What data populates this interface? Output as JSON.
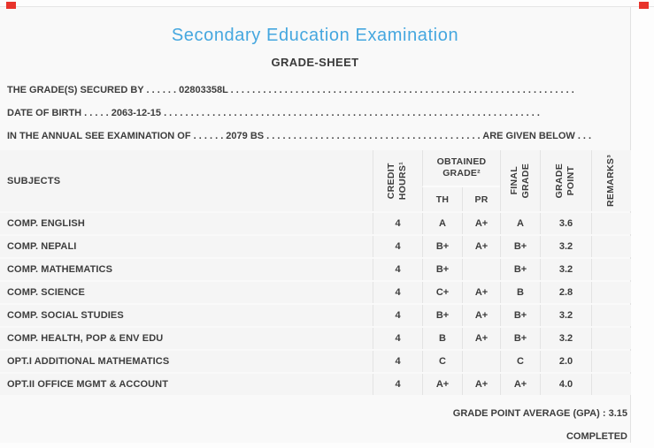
{
  "corner_marks": {
    "color": "#e8342c"
  },
  "header": {
    "title": "Secondary Education Examination",
    "title_color": "#45a7df",
    "subtitle": "GRADE-SHEET"
  },
  "info_lines": [
    {
      "text": "THE GRADE(S) SECURED BY . . . . . . 02803358L . . . . . . . . . . . . . . . . . . . . . . . . . . . . . . . . . . . . . . . . . . . . . . . . . . . . . . . . . . . . . . . ."
    },
    {
      "text": "DATE OF BIRTH . . . . . 2063-12-15 . . . . . . . . . . . . . . . . . . . . . . . . . . . . . . . . . . . . . . . . . . . . . . . . . . . . . . . . . . . . . . . . . . . . . ."
    },
    {
      "text": "IN THE ANNUAL SEE EXAMINATION OF . . . . . . 2079 BS . . . . . . . . . . . . . . . . . . . . . . . . . . . . . . . . . . . . . . . . ARE GIVEN BELOW . . ."
    }
  ],
  "table": {
    "headers": {
      "subjects": "SUBJECTS",
      "credit_hours": "CREDIT\nHOURS¹",
      "obtained_grade": "OBTAINED\nGRADE²",
      "th": "TH",
      "pr": "PR",
      "final_grade": "FINAL\nGRADE",
      "grade_point": "GRADE\nPOINT",
      "remarks": "REMARKS³"
    },
    "rows": [
      {
        "subject": "COMP. ENGLISH",
        "credit_hours": "4",
        "th": "A",
        "pr": "A+",
        "final": "A",
        "grade_point": "3.6",
        "remarks": ""
      },
      {
        "subject": "COMP. NEPALI",
        "credit_hours": "4",
        "th": "B+",
        "pr": "A+",
        "final": "B+",
        "grade_point": "3.2",
        "remarks": ""
      },
      {
        "subject": "COMP. MATHEMATICS",
        "credit_hours": "4",
        "th": "B+",
        "pr": "",
        "final": "B+",
        "grade_point": "3.2",
        "remarks": ""
      },
      {
        "subject": "COMP. SCIENCE",
        "credit_hours": "4",
        "th": "C+",
        "pr": "A+",
        "final": "B",
        "grade_point": "2.8",
        "remarks": ""
      },
      {
        "subject": "COMP. SOCIAL STUDIES",
        "credit_hours": "4",
        "th": "B+",
        "pr": "A+",
        "final": "B+",
        "grade_point": "3.2",
        "remarks": ""
      },
      {
        "subject": "COMP. HEALTH, POP & ENV EDU",
        "credit_hours": "4",
        "th": "B",
        "pr": "A+",
        "final": "B+",
        "grade_point": "3.2",
        "remarks": ""
      },
      {
        "subject": "OPT.I ADDITIONAL MATHEMATICS",
        "credit_hours": "4",
        "th": "C",
        "pr": "",
        "final": "C",
        "grade_point": "2.0",
        "remarks": ""
      },
      {
        "subject": "OPT.II OFFICE MGMT & ACCOUNT",
        "credit_hours": "4",
        "th": "A+",
        "pr": "A+",
        "final": "A+",
        "grade_point": "4.0",
        "remarks": ""
      }
    ]
  },
  "footer": {
    "gpa_label": "GRADE POINT AVERAGE (GPA) :",
    "gpa_value": "3.15",
    "status": "COMPLETED"
  }
}
